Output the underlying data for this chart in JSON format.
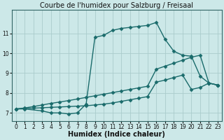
{
  "title": "Courbe de l'humidex pour Salzburg / Freisaal",
  "xlabel": "Humidex (Indice chaleur)",
  "background_color": "#cce8e8",
  "grid_color": "#aacccc",
  "line_color": "#1a6b6b",
  "xlim": [
    -0.5,
    23.5
  ],
  "ylim": [
    6.6,
    12.2
  ],
  "xticks": [
    0,
    1,
    2,
    3,
    4,
    5,
    6,
    7,
    8,
    9,
    10,
    11,
    12,
    13,
    14,
    15,
    16,
    17,
    18,
    19,
    20,
    21,
    22,
    23
  ],
  "yticks": [
    7,
    8,
    9,
    10,
    11
  ],
  "line1_x": [
    0,
    1,
    3,
    4,
    5,
    6,
    7,
    8,
    9,
    10,
    11,
    12,
    13,
    14,
    15,
    16,
    17,
    18,
    19,
    20,
    21,
    22,
    23
  ],
  "line1_y": [
    7.2,
    7.2,
    7.1,
    7.0,
    7.0,
    6.95,
    7.0,
    7.45,
    10.8,
    10.9,
    11.15,
    11.25,
    11.3,
    11.35,
    11.4,
    11.55,
    10.7,
    10.1,
    9.9,
    9.85,
    8.85,
    8.5,
    8.4
  ],
  "line2_full_x": [
    0,
    1,
    2,
    3,
    4,
    5,
    6,
    7,
    8,
    9,
    10,
    11,
    12,
    13,
    14,
    15,
    16,
    17,
    18,
    19,
    20,
    21,
    22,
    23
  ],
  "line2_full_y": [
    7.2,
    7.25,
    7.32,
    7.4,
    7.48,
    7.55,
    7.62,
    7.7,
    7.78,
    7.86,
    7.94,
    8.02,
    8.1,
    8.18,
    8.26,
    8.34,
    9.2,
    9.35,
    9.5,
    9.65,
    9.8,
    9.9,
    8.5,
    8.4
  ],
  "line3_full_x": [
    0,
    1,
    2,
    3,
    4,
    5,
    6,
    7,
    8,
    9,
    10,
    11,
    12,
    13,
    14,
    15,
    16,
    17,
    18,
    19,
    20,
    21,
    22,
    23
  ],
  "line3_full_y": [
    7.2,
    7.22,
    7.24,
    7.26,
    7.28,
    7.3,
    7.32,
    7.34,
    7.36,
    7.4,
    7.44,
    7.5,
    7.58,
    7.66,
    7.74,
    7.82,
    8.55,
    8.65,
    8.78,
    8.9,
    8.18,
    8.28,
    8.5,
    8.4
  ],
  "marker": "D",
  "marker_size": 2.5,
  "line_width": 1.0,
  "tick_fontsize": 5.5,
  "label_fontsize": 7,
  "title_fontsize": 7
}
